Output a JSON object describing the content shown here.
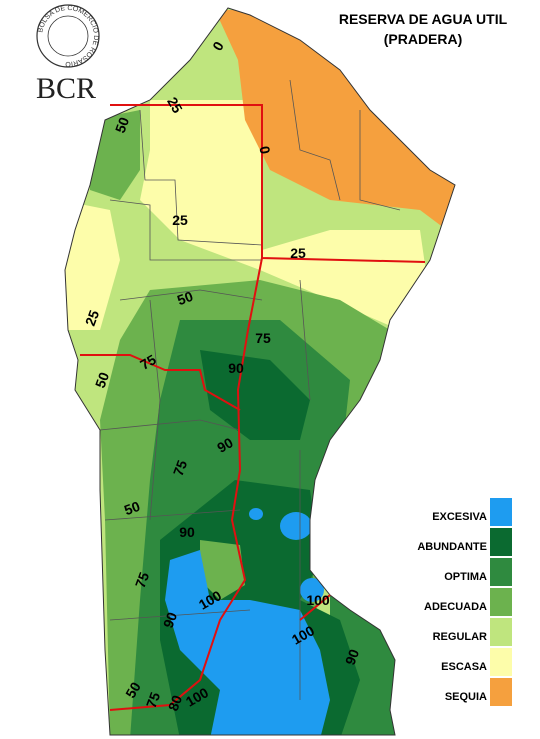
{
  "logo": {
    "ring_text": "BOLSA DE COMERCIO DE ROSARIO",
    "name": "BCR"
  },
  "title": [
    "RESERVA DE AGUA UTIL",
    "(PRADERA)"
  ],
  "legend": [
    {
      "label": "EXCESIVA",
      "color": "#1e9cf0"
    },
    {
      "label": "ABUNDANTE",
      "color": "#0b6a30"
    },
    {
      "label": "OPTIMA",
      "color": "#2f8a3f"
    },
    {
      "label": "ADECUADA",
      "color": "#6cb24e"
    },
    {
      "label": "REGULAR",
      "color": "#bfe57e"
    },
    {
      "label": "ESCASA",
      "color": "#fdfdaa"
    },
    {
      "label": "SEQUIA",
      "color": "#f5a03e"
    }
  ],
  "contour_labels": [
    "0",
    "25",
    "50",
    "0",
    "25",
    "25",
    "50",
    "25",
    "75",
    "50",
    "75",
    "90",
    "90",
    "75",
    "50",
    "90",
    "75",
    "100",
    "90",
    "100",
    "100",
    "90",
    "50",
    "75",
    "80",
    "100"
  ]
}
